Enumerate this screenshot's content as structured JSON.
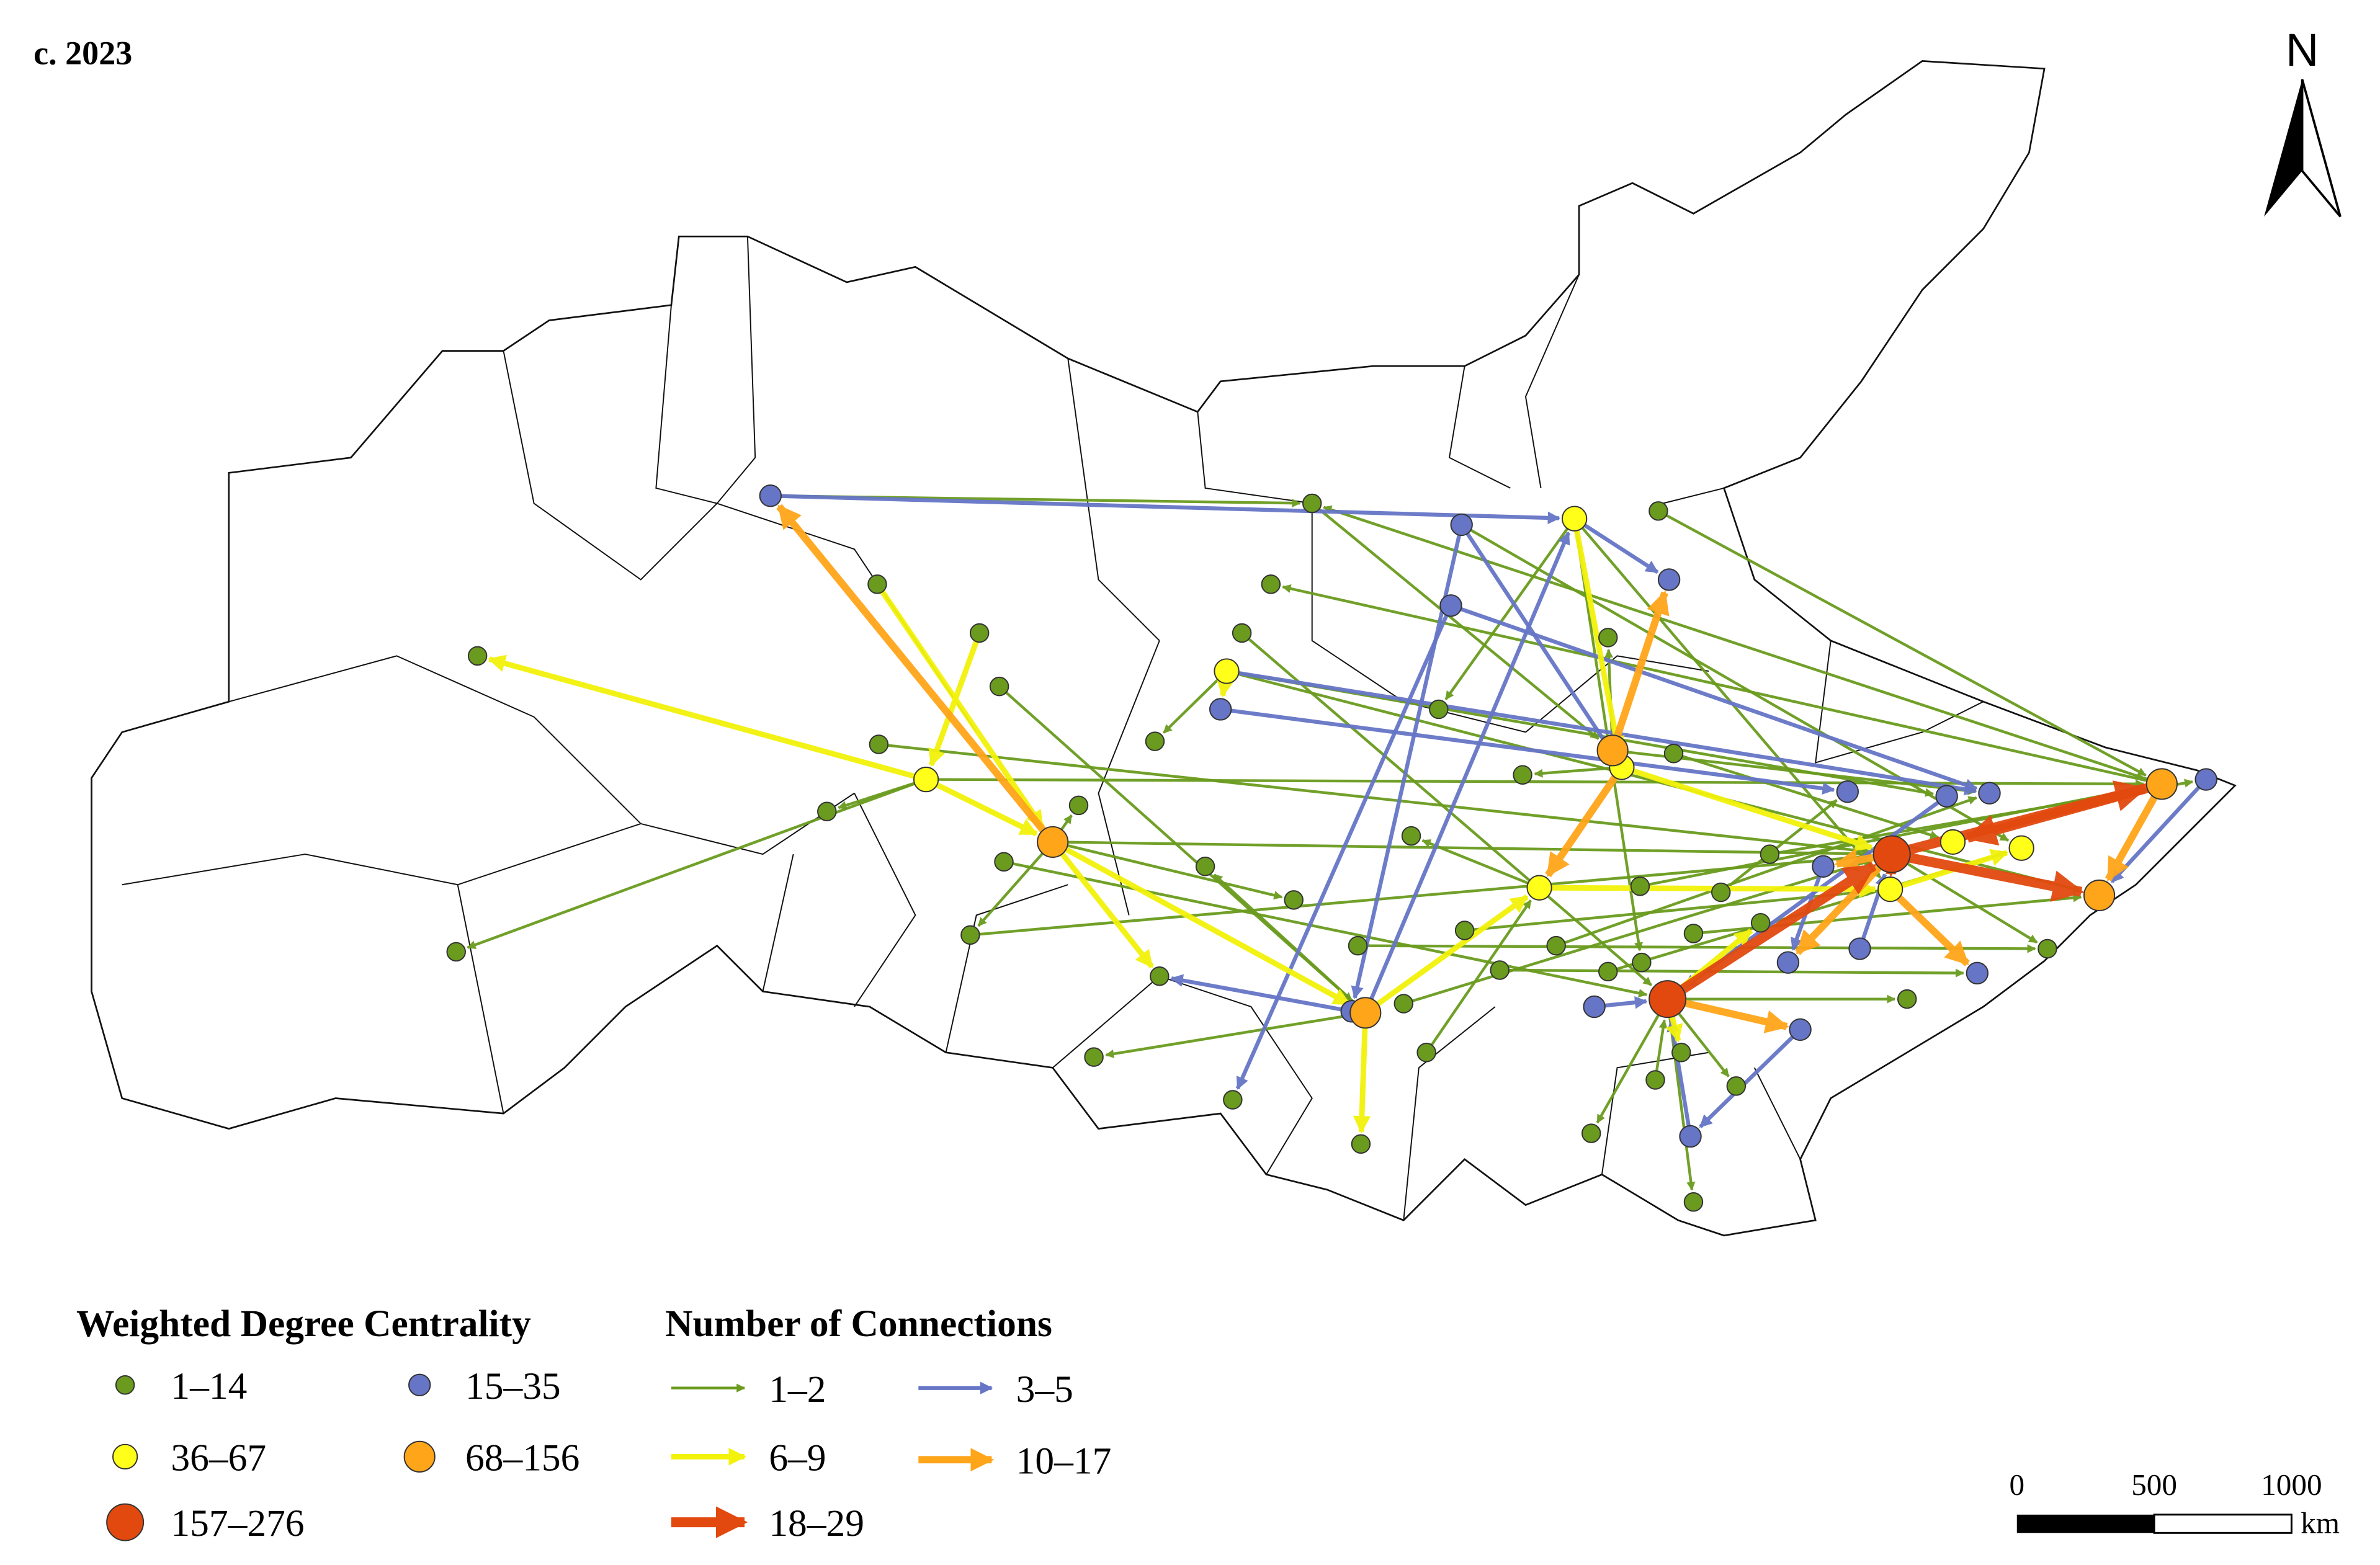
{
  "title": "c. 2023",
  "north_arrow": "N",
  "legend": {
    "centrality": {
      "title": "Weighted Degree Centrality",
      "items": [
        {
          "label": "1–14",
          "color": "#6a9b1e"
        },
        {
          "label": "15–35",
          "color": "#6675c6"
        },
        {
          "label": "36–67",
          "color": "#ffff1a"
        },
        {
          "label": "68–156",
          "color": "#ffa51a"
        },
        {
          "label": "157–276",
          "color": "#e2490f"
        }
      ]
    },
    "connections": {
      "title": "Number of Connections",
      "items": [
        {
          "label": "1–2",
          "color": "#6a9b1e"
        },
        {
          "label": "3–5",
          "color": "#6675c6"
        },
        {
          "label": "6–9",
          "color": "#f2f20a"
        },
        {
          "label": "10–17",
          "color": "#ffa51a"
        },
        {
          "label": "18–29",
          "color": "#e2490f"
        }
      ]
    }
  },
  "scale_bar": {
    "ticks": [
      0,
      500,
      1000
    ],
    "unit": "km"
  }
}
